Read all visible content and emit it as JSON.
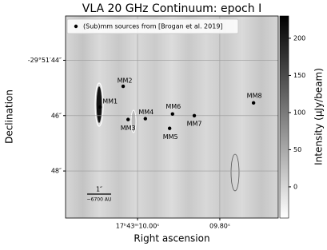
{
  "chart_data": {
    "type": "image-scatter",
    "title": "VLA 20 GHz Continuum: epoch I",
    "x_label": "Right ascension",
    "y_label": "Declination",
    "colorbar_label": "Intensity (μJy/beam)",
    "xlim": [
      10.175,
      9.658
    ],
    "xticks": [
      {
        "value": 10.0,
        "label": "17ʰ43ᵐ10.00ˢ"
      },
      {
        "value": 9.8,
        "label": "09.80ˢ"
      }
    ],
    "ylim": [
      -49.7,
      -42.4
    ],
    "yticks": [
      {
        "value": -44,
        "label": "-29°51′44″"
      },
      {
        "value": -46,
        "label": "46″"
      },
      {
        "value": -48,
        "label": "48″"
      }
    ],
    "clim": [
      -42,
      230
    ],
    "cticks": [
      0,
      50,
      100,
      150,
      200
    ],
    "grid": true,
    "legend_position": "upper left",
    "scalebar": {
      "label": "1″",
      "sublabel": "~6700 AU"
    },
    "series": [
      {
        "name": "(Sub)mm sources from [Brogan et al. 2019]",
        "color": "#000000",
        "labels": [
          "MM1",
          "MM2",
          "MM3",
          "MM4",
          "MM5",
          "MM6",
          "MM7",
          "MM8"
        ],
        "x": [
          10.091,
          10.035,
          10.023,
          9.981,
          9.922,
          9.915,
          9.862,
          9.718
        ],
        "y": [
          -45.69,
          -44.94,
          -46.14,
          -46.11,
          -46.46,
          -45.94,
          -46.0,
          -45.54
        ]
      }
    ]
  }
}
